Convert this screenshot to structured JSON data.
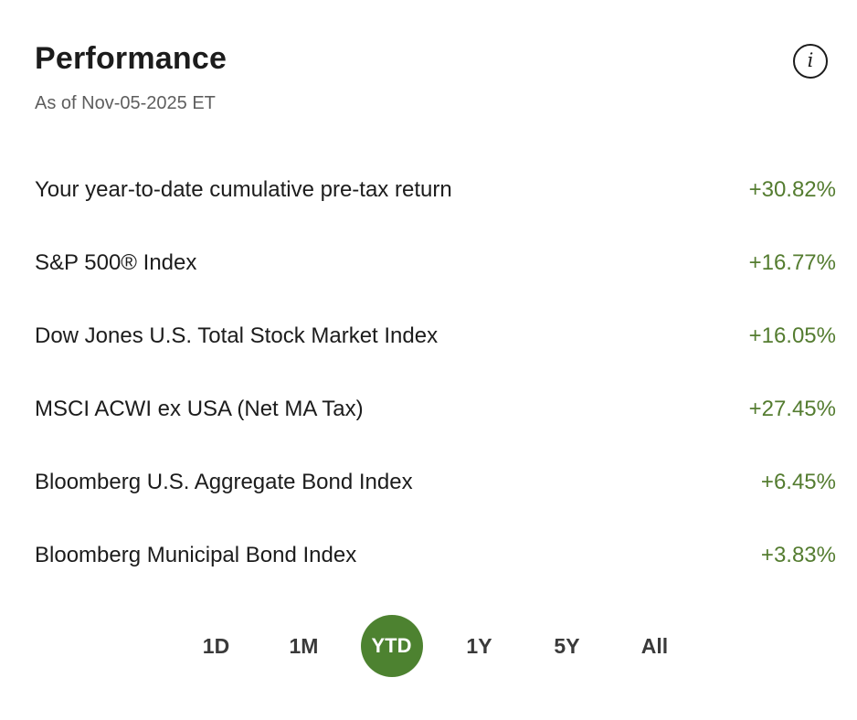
{
  "header": {
    "title": "Performance",
    "as_of": "As of Nov-05-2025 ET",
    "info_glyph": "i"
  },
  "rows": [
    {
      "label": "Your year-to-date cumulative pre-tax return",
      "value": "+30.82%"
    },
    {
      "label": "S&P 500® Index",
      "value": "+16.77%"
    },
    {
      "label": "Dow Jones U.S. Total Stock Market Index",
      "value": "+16.05%"
    },
    {
      "label": "MSCI ACWI ex USA (Net MA Tax)",
      "value": "+27.45%"
    },
    {
      "label": "Bloomberg U.S. Aggregate Bond Index",
      "value": "+6.45%"
    },
    {
      "label": "Bloomberg Municipal Bond Index",
      "value": "+3.83%"
    }
  ],
  "periods": [
    {
      "label": "1D",
      "selected": false
    },
    {
      "label": "1M",
      "selected": false
    },
    {
      "label": "YTD",
      "selected": true
    },
    {
      "label": "1Y",
      "selected": false
    },
    {
      "label": "5Y",
      "selected": false
    },
    {
      "label": "All",
      "selected": false
    }
  ],
  "colors": {
    "positive_value": "#547c30",
    "selected_period_bg": "#4d8230",
    "text_primary": "#1c1c1c",
    "text_secondary": "#5e5e5e",
    "background": "#ffffff"
  }
}
